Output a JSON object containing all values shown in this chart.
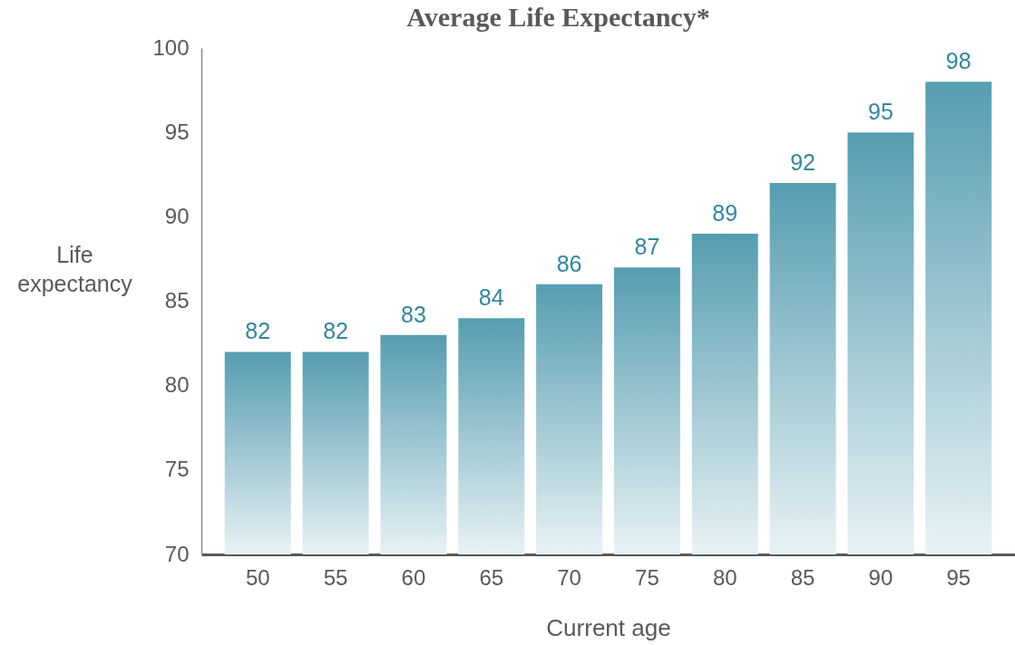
{
  "chart_data": {
    "type": "bar",
    "title": "Average Life Expectancy*",
    "xlabel": "Current age",
    "ylabel": "Life expectancy",
    "categories": [
      "50",
      "55",
      "60",
      "65",
      "70",
      "75",
      "80",
      "85",
      "90",
      "95"
    ],
    "values": [
      82,
      82,
      83,
      84,
      86,
      87,
      89,
      92,
      95,
      98
    ],
    "color": "#4392a8",
    "data_labels": true,
    "ylim": [
      70,
      100
    ],
    "yticks": [
      70,
      75,
      80,
      85,
      90,
      95,
      100
    ],
    "grid": false
  }
}
